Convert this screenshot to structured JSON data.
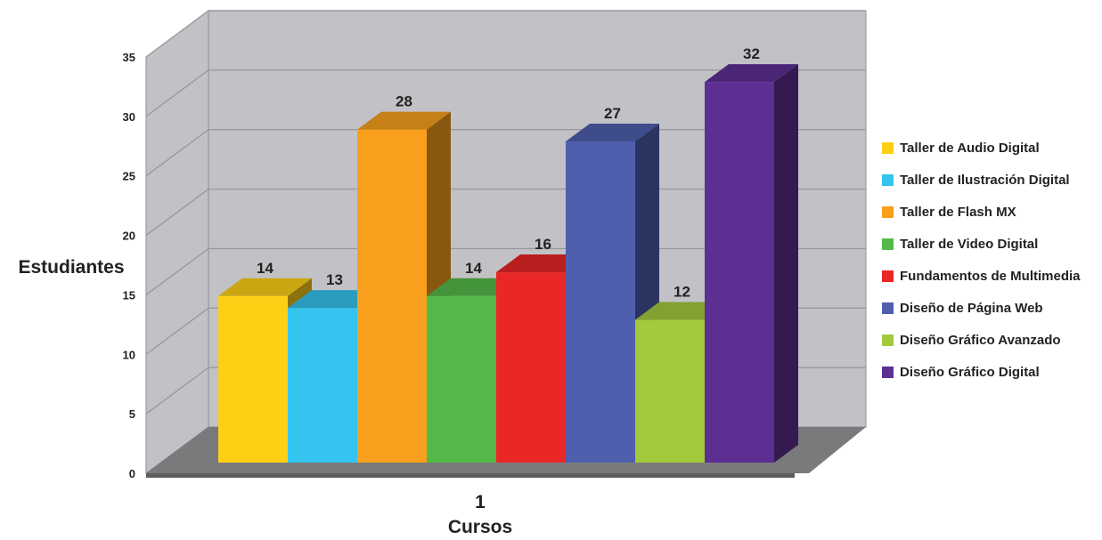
{
  "chart_data": {
    "type": "bar",
    "categories": [
      "1"
    ],
    "series": [
      {
        "name": "Taller de Audio Digital",
        "values": [
          14
        ],
        "color": "#fdd016"
      },
      {
        "name": "Taller de Ilustración Digital",
        "values": [
          13
        ],
        "color": "#34c4ef"
      },
      {
        "name": "Taller de Flash MX",
        "values": [
          28
        ],
        "color": "#f8a01e"
      },
      {
        "name": "Taller de Video Digital",
        "values": [
          14
        ],
        "color": "#54b949"
      },
      {
        "name": "Fundamentos de Multimedia",
        "values": [
          16
        ],
        "color": "#e92727"
      },
      {
        "name": "Diseño de Página Web",
        "values": [
          27
        ],
        "color": "#4f5fae"
      },
      {
        "name": "Diseño Gráfico Avanzado",
        "values": [
          12
        ],
        "color": "#a3c93d"
      },
      {
        "name": "Diseño Gráfico Digital",
        "values": [
          32
        ],
        "color": "#5e2f93"
      }
    ],
    "xlabel": "Cursos",
    "ylabel": "Estudiantes",
    "ylim": [
      0,
      35
    ],
    "yticks": [
      "0",
      "5",
      "10",
      "15",
      "20",
      "25",
      "30",
      "35"
    ],
    "grid": true,
    "data_labels": true,
    "legend_position": "right",
    "style": "3d"
  },
  "colors": {
    "wall": "#c2c2c6",
    "floor": "#7a7a7c",
    "gridline": "#9a9a9e"
  }
}
